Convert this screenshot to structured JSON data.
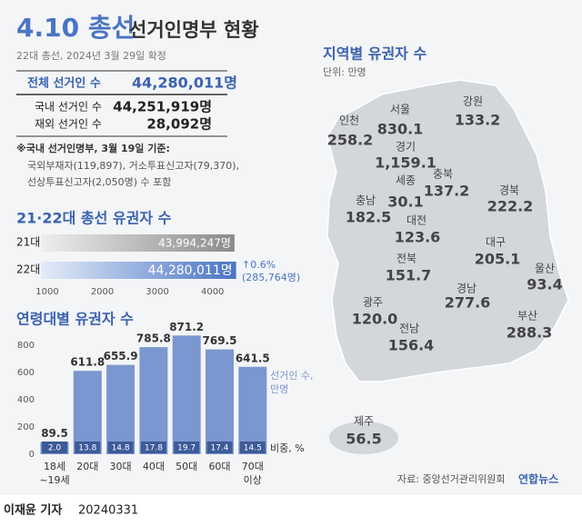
{
  "header": {
    "title_main": "4.10 총선",
    "title_rest": "선거인명부 현황",
    "subtitle": "22대 총선, 2024년 3월 29일 확정"
  },
  "summary": {
    "rows": [
      [
        "전체 선거인 수",
        "44,280,011명"
      ],
      [
        "국내 선거인 수",
        "44,251,919명"
      ],
      [
        "재외 선거인 수",
        "28,092명"
      ]
    ],
    "notes": [
      "※국내 선거인명부, 3월 19일 기준:",
      "국외부재자(119,897), 거소투표신고자(79,370),",
      "선상투표신고자(2,050명) 수 포함"
    ]
  },
  "chart_data": [
    {
      "type": "hbar",
      "title": "21·22대 총선 유권자 수",
      "categories": [
        "21대",
        "22대"
      ],
      "values": [
        4399.4247,
        4428.0011
      ],
      "value_labels": [
        "43,994,247명",
        "44,280,011명"
      ],
      "colors": [
        "#8a8a8a",
        "#4a74c4"
      ],
      "xlim": [
        885,
        4500
      ],
      "xticks": [
        1000,
        2000,
        3000,
        4000
      ],
      "annotations": [
        "↑0.6%",
        "(285,764명)"
      ]
    },
    {
      "type": "bar",
      "title": "연령대별 유권자 수",
      "categories": [
        "18세\n~19세",
        "20대",
        "30대",
        "40대",
        "50대",
        "60대",
        "70대\n이상"
      ],
      "series": [
        {
          "name": "선거인 수,\n만명",
          "color": "#7b97cf",
          "values": [
            89.5,
            611.8,
            655.9,
            785.8,
            871.2,
            769.5,
            641.5
          ]
        },
        {
          "name": "비중, %",
          "color": "#3d5a99",
          "values": [
            2.0,
            13.8,
            14.8,
            17.8,
            19.7,
            17.4,
            14.5
          ],
          "value_labels": [
            "2.0",
            "13.8",
            "14.8",
            "17.8",
            "19.7",
            "17.4",
            "14.5"
          ]
        }
      ],
      "ylim": [
        0,
        960
      ],
      "yticks": [
        0,
        200,
        400,
        600,
        800
      ],
      "grid": false
    }
  ],
  "map": {
    "title": "지역별 유권자 수",
    "unit": "단위: 만명",
    "regions": [
      {
        "name": "서울",
        "value": "830.1"
      },
      {
        "name": "강원",
        "value": "133.2"
      },
      {
        "name": "인천",
        "value": "258.2"
      },
      {
        "name": "경기",
        "value": "1,159.1"
      },
      {
        "name": "충북",
        "value": "137.2"
      },
      {
        "name": "세종",
        "value": "30.1"
      },
      {
        "name": "경북",
        "value": "222.2"
      },
      {
        "name": "충남",
        "value": "182.5"
      },
      {
        "name": "대전",
        "value": "123.6"
      },
      {
        "name": "대구",
        "value": "205.1"
      },
      {
        "name": "전북",
        "value": "151.7"
      },
      {
        "name": "울산",
        "value": "93.4"
      },
      {
        "name": "경남",
        "value": "277.6"
      },
      {
        "name": "광주",
        "value": "120.0"
      },
      {
        "name": "부산",
        "value": "288.3"
      },
      {
        "name": "전남",
        "value": "156.4"
      },
      {
        "name": "제주",
        "value": "56.5"
      }
    ]
  },
  "footer": {
    "source": "자료: 중앙선거관리위원회",
    "logo": "연합뉴스",
    "author": "이재윤 기자",
    "date": "20240331"
  }
}
